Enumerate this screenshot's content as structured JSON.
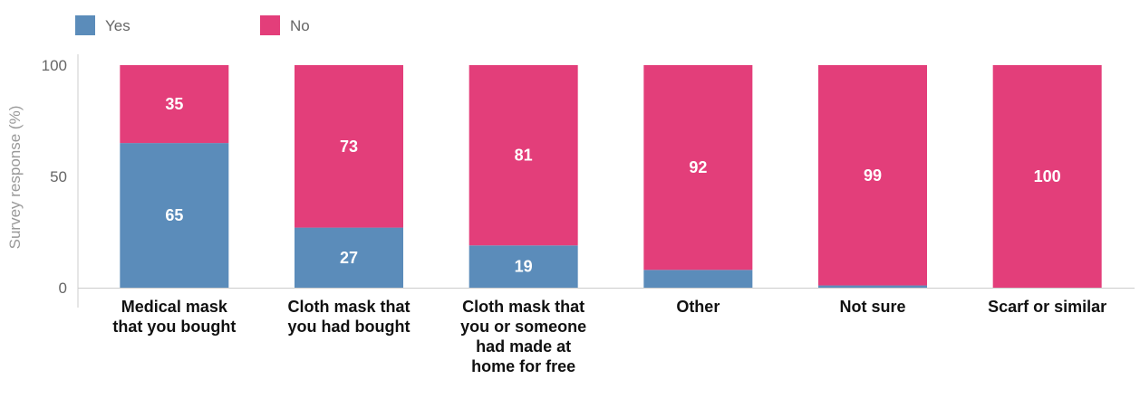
{
  "chart_data": {
    "type": "bar",
    "stacked": true,
    "ylabel": "Survey response (%)",
    "ylim": [
      0,
      100
    ],
    "yticks": [
      0,
      50,
      100
    ],
    "grid": false,
    "legend": "top-left",
    "categories": [
      [
        "Medical mask",
        "that you bought"
      ],
      [
        "Cloth mask that",
        "you had bought"
      ],
      [
        "Cloth mask that",
        "you or someone",
        "had made at",
        "home for free"
      ],
      [
        "Other"
      ],
      [
        "Not sure"
      ],
      [
        "Scarf or similar"
      ]
    ],
    "series": [
      {
        "name": "Yes",
        "color": "#5b8cba",
        "values": [
          65,
          27,
          19,
          8,
          1,
          0
        ],
        "labels": [
          "65",
          "27",
          "19",
          "",
          "",
          ""
        ]
      },
      {
        "name": "No",
        "color": "#e33e7a",
        "values": [
          35,
          73,
          81,
          92,
          99,
          100
        ],
        "labels": [
          "35",
          "73",
          "81",
          "92",
          "99",
          "100"
        ]
      }
    ]
  }
}
